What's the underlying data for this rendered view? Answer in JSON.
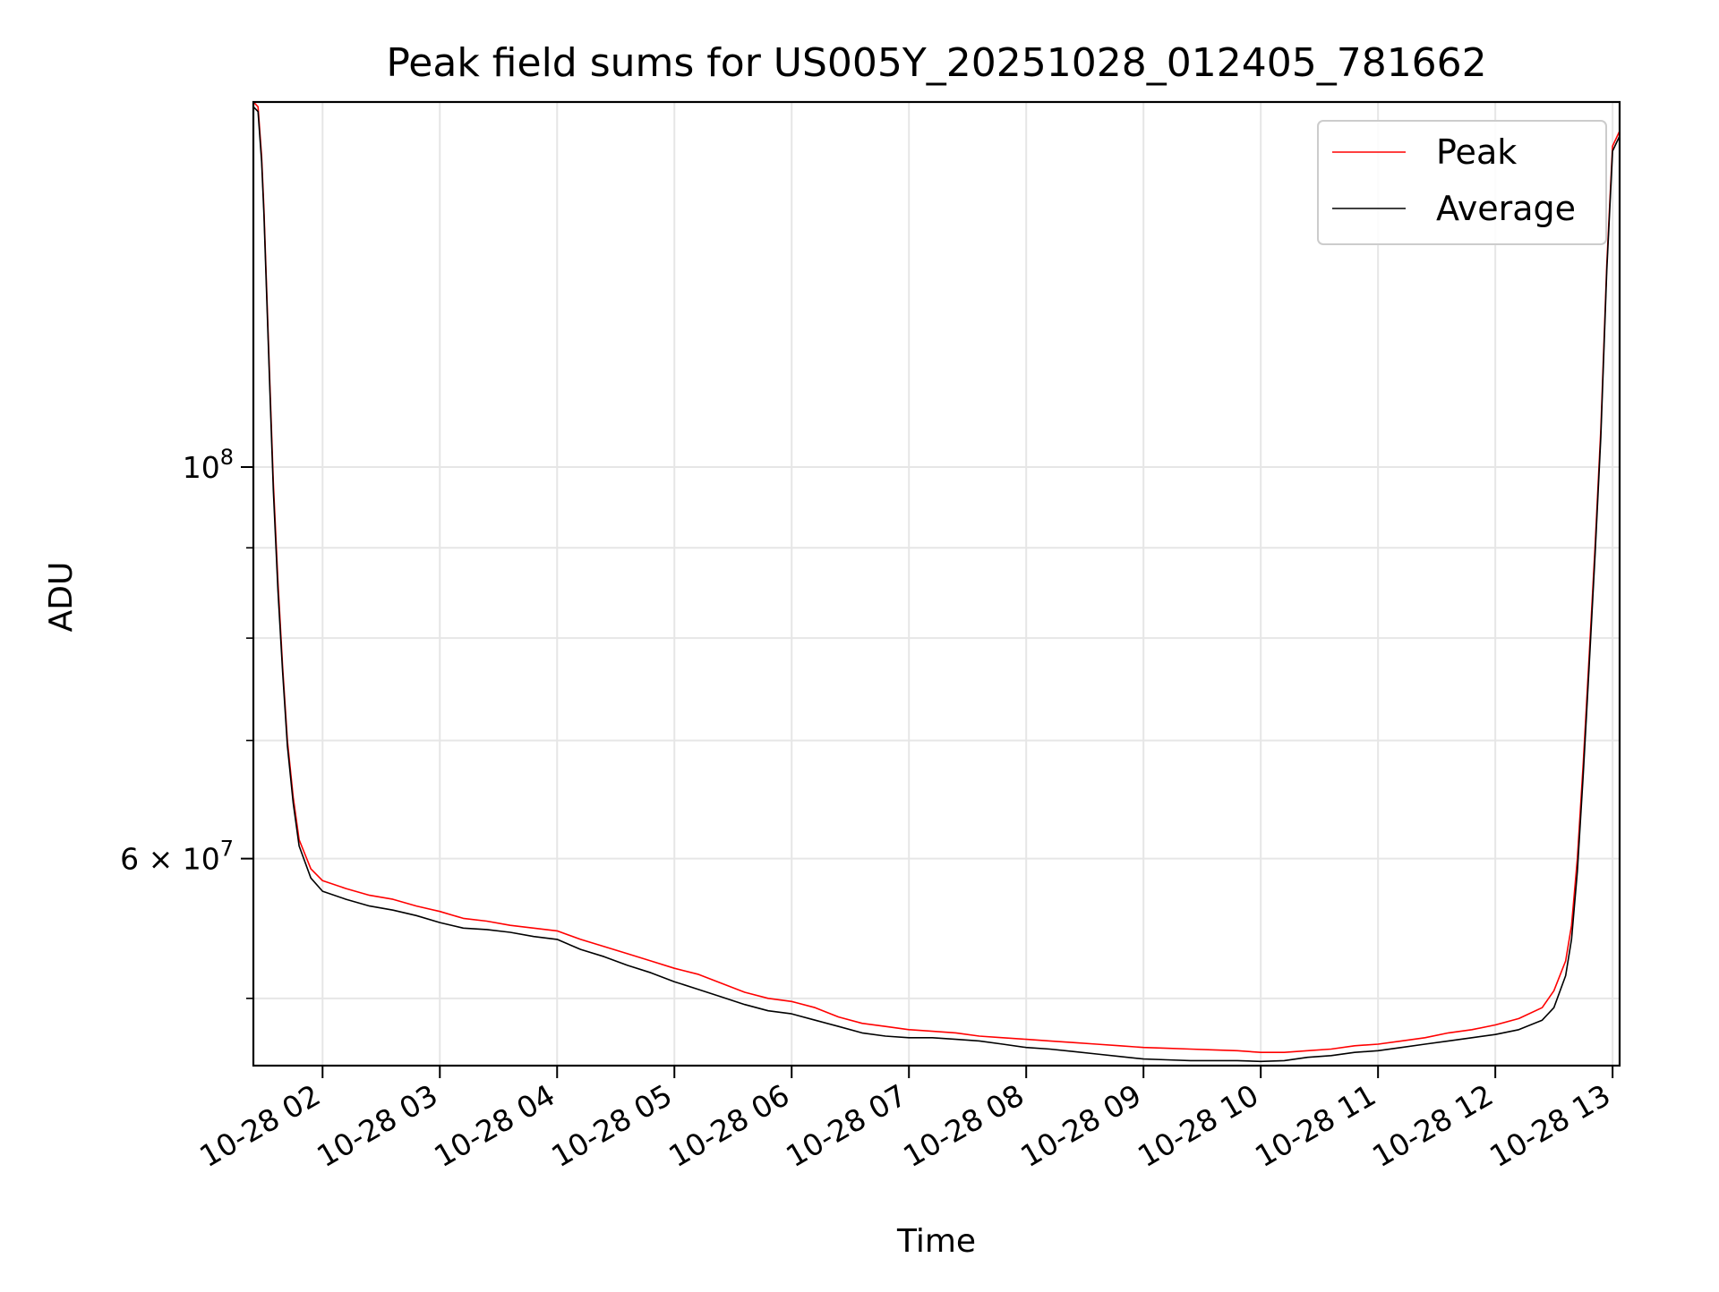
{
  "chart_data": {
    "type": "line",
    "title": "Peak field sums for US005Y_20251028_012405_781662",
    "xlabel": "Time",
    "ylabel": "ADU",
    "yscale": "log",
    "x_unit": "hours since 2025-10-28 00:00",
    "xlim": [
      1.41,
      13.06
    ],
    "ylim": [
      45800000,
      161000000
    ],
    "grid": true,
    "legend_position": "top-right",
    "x_ticks": [
      {
        "value": 2,
        "label": "10-28 02"
      },
      {
        "value": 3,
        "label": "10-28 03"
      },
      {
        "value": 4,
        "label": "10-28 04"
      },
      {
        "value": 5,
        "label": "10-28 05"
      },
      {
        "value": 6,
        "label": "10-28 06"
      },
      {
        "value": 7,
        "label": "10-28 07"
      },
      {
        "value": 8,
        "label": "10-28 08"
      },
      {
        "value": 9,
        "label": "10-28 09"
      },
      {
        "value": 10,
        "label": "10-28 10"
      },
      {
        "value": 11,
        "label": "10-28 11"
      },
      {
        "value": 12,
        "label": "10-28 12"
      },
      {
        "value": 13,
        "label": "10-28 13"
      }
    ],
    "y_major_ticks": [
      {
        "value": 60000000,
        "base": "6 × 10",
        "exp": "7"
      },
      {
        "value": 100000000,
        "base": "10",
        "exp": "8"
      }
    ],
    "y_minor_ticks": [
      50000000,
      70000000,
      80000000,
      90000000
    ],
    "series": [
      {
        "name": "Peak",
        "color": "#ff0000",
        "x": [
          1.41,
          1.45,
          1.48,
          1.5,
          1.52,
          1.55,
          1.58,
          1.62,
          1.66,
          1.7,
          1.75,
          1.8,
          1.9,
          2.0,
          2.2,
          2.4,
          2.6,
          2.8,
          3.0,
          3.2,
          3.4,
          3.6,
          3.8,
          4.0,
          4.2,
          4.4,
          4.6,
          4.8,
          5.0,
          5.2,
          5.4,
          5.6,
          5.8,
          6.0,
          6.2,
          6.4,
          6.6,
          6.8,
          7.0,
          7.2,
          7.4,
          7.6,
          7.8,
          8.0,
          8.2,
          8.4,
          8.6,
          8.8,
          9.0,
          9.2,
          9.4,
          9.6,
          9.8,
          10.0,
          10.2,
          10.4,
          10.6,
          10.8,
          11.0,
          11.2,
          11.4,
          11.6,
          11.8,
          12.0,
          12.2,
          12.4,
          12.5,
          12.6,
          12.65,
          12.7,
          12.75,
          12.8,
          12.85,
          12.9,
          12.95,
          13.0,
          13.06
        ],
        "values": [
          161000000,
          160000000,
          150000000,
          140000000,
          128000000,
          112000000,
          98000000,
          86000000,
          77000000,
          70000000,
          65000000,
          61500000,
          59200000,
          58300000,
          57700000,
          57200000,
          56900000,
          56400000,
          56000000,
          55500000,
          55300000,
          55000000,
          54800000,
          54600000,
          54000000,
          53500000,
          53000000,
          52500000,
          52000000,
          51600000,
          51000000,
          50400000,
          50000000,
          49800000,
          49400000,
          48800000,
          48400000,
          48200000,
          48000000,
          47900000,
          47800000,
          47600000,
          47500000,
          47400000,
          47300000,
          47200000,
          47100000,
          47000000,
          46900000,
          46850000,
          46800000,
          46750000,
          46700000,
          46600000,
          46600000,
          46700000,
          46800000,
          47000000,
          47100000,
          47300000,
          47500000,
          47800000,
          48000000,
          48300000,
          48700000,
          49400000,
          50500000,
          52500000,
          55000000,
          60000000,
          68000000,
          78000000,
          90000000,
          105000000,
          130000000,
          152000000,
          155000000
        ]
      },
      {
        "name": "Average",
        "color": "#000000",
        "x": [
          1.41,
          1.45,
          1.48,
          1.5,
          1.52,
          1.55,
          1.58,
          1.62,
          1.66,
          1.7,
          1.75,
          1.8,
          1.9,
          2.0,
          2.2,
          2.4,
          2.6,
          2.8,
          3.0,
          3.2,
          3.4,
          3.6,
          3.8,
          4.0,
          4.2,
          4.4,
          4.6,
          4.8,
          5.0,
          5.2,
          5.4,
          5.6,
          5.8,
          6.0,
          6.2,
          6.4,
          6.6,
          6.8,
          7.0,
          7.2,
          7.4,
          7.6,
          7.8,
          8.0,
          8.2,
          8.4,
          8.6,
          8.8,
          9.0,
          9.2,
          9.4,
          9.6,
          9.8,
          10.0,
          10.2,
          10.4,
          10.6,
          10.8,
          11.0,
          11.2,
          11.4,
          11.6,
          11.8,
          12.0,
          12.2,
          12.4,
          12.5,
          12.6,
          12.65,
          12.7,
          12.75,
          12.8,
          12.85,
          12.9,
          12.95,
          13.0,
          13.06
        ],
        "values": [
          160000000,
          159000000,
          149000000,
          139000000,
          127000000,
          111000000,
          97000000,
          85000000,
          76500000,
          69500000,
          64500000,
          61000000,
          58500000,
          57500000,
          56900000,
          56400000,
          56100000,
          55700000,
          55200000,
          54800000,
          54700000,
          54500000,
          54200000,
          54000000,
          53300000,
          52800000,
          52200000,
          51700000,
          51100000,
          50600000,
          50100000,
          49600000,
          49200000,
          49000000,
          48600000,
          48200000,
          47800000,
          47600000,
          47500000,
          47500000,
          47400000,
          47300000,
          47100000,
          46900000,
          46800000,
          46650000,
          46500000,
          46350000,
          46200000,
          46150000,
          46100000,
          46100000,
          46100000,
          46050000,
          46100000,
          46300000,
          46400000,
          46600000,
          46700000,
          46900000,
          47100000,
          47300000,
          47500000,
          47700000,
          48000000,
          48600000,
          49400000,
          51500000,
          54000000,
          59000000,
          67000000,
          77000000,
          89000000,
          104000000,
          129000000,
          151000000,
          154000000
        ]
      }
    ]
  }
}
